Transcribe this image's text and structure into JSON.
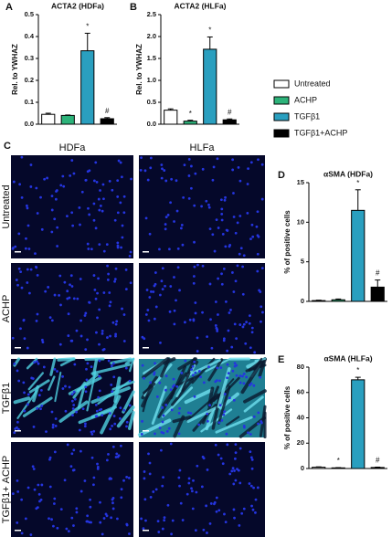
{
  "chart_data": [
    {
      "type": "bar",
      "panel": "A",
      "title": "ACTA2 (HDFa)",
      "ylabel": "Rel. to YWHAZ",
      "categories": [
        null,
        null,
        null,
        null
      ],
      "values": [
        0.045,
        0.04,
        0.335,
        0.025
      ],
      "errors": [
        0.005,
        0.002,
        0.08,
        0.005
      ],
      "colors": [
        "#ffffff",
        "#2db37a",
        "#2a9fbf",
        "#000000"
      ],
      "annotations": [
        null,
        null,
        "*",
        "#"
      ],
      "ylim": [
        0,
        0.5
      ],
      "yticks": [
        {
          "value": 0,
          "label": "0.0"
        },
        {
          "value": 0.1,
          "label": "0.1"
        },
        {
          "value": 0.2,
          "label": "0.2"
        },
        {
          "value": 0.3,
          "label": "0.3"
        },
        {
          "value": 0.4,
          "label": "0.4"
        },
        {
          "value": 0.5,
          "label": "0.5"
        }
      ]
    },
    {
      "type": "bar",
      "panel": "B",
      "title": "ACTA2 (HLFa)",
      "ylabel": "Rel. to YWHAZ",
      "categories": [
        null,
        null,
        null,
        null
      ],
      "values": [
        0.32,
        0.07,
        1.71,
        0.1
      ],
      "errors": [
        0.03,
        0.02,
        0.28,
        0.02
      ],
      "colors": [
        "#ffffff",
        "#2db37a",
        "#2a9fbf",
        "#000000"
      ],
      "annotations": [
        null,
        "*",
        "*",
        "#"
      ],
      "ylim": [
        0,
        2.5
      ],
      "yticks": [
        {
          "value": 0,
          "label": "0.0"
        },
        {
          "value": 0.5,
          "label": "0.5"
        },
        {
          "value": 1,
          "label": "1.0"
        },
        {
          "value": 1.5,
          "label": "1.5"
        },
        {
          "value": 2,
          "label": "2.0"
        },
        {
          "value": 2.5,
          "label": "2.5"
        }
      ]
    },
    {
      "type": "bar",
      "panel": "D",
      "title": "αSMA (HDFa)",
      "ylabel": "% of positive cells",
      "categories": [
        null,
        null,
        null,
        null
      ],
      "values": [
        0.1,
        0.2,
        11.5,
        1.8
      ],
      "errors": [
        0.05,
        0.1,
        2.6,
        0.9
      ],
      "colors": [
        "#ffffff",
        "#2db37a",
        "#2a9fbf",
        "#000000"
      ],
      "annotations": [
        null,
        null,
        "*",
        "#"
      ],
      "ylim": [
        0,
        15
      ],
      "yticks": [
        0,
        5,
        10,
        15
      ]
    },
    {
      "type": "bar",
      "panel": "E",
      "title": "αSMA (HLFa)",
      "ylabel": "% of positive cells",
      "categories": [
        null,
        null,
        null,
        null
      ],
      "values": [
        1,
        0.5,
        70,
        0.8
      ],
      "errors": [
        0.3,
        0.2,
        2,
        0.3
      ],
      "colors": [
        "#ffffff",
        "#2db37a",
        "#2a9fbf",
        "#000000"
      ],
      "annotations": [
        null,
        "*",
        "*",
        "#"
      ],
      "ylim": [
        0,
        80
      ],
      "yticks": [
        0,
        20,
        40,
        60,
        80
      ]
    }
  ],
  "legend": [
    {
      "name": "Untreated",
      "color": "#ffffff"
    },
    {
      "name": "ACHP",
      "color": "#2db37a"
    },
    {
      "name": "TGFβ1",
      "color": "#2a9fbf"
    },
    {
      "name": "TGFβ1+ACHP",
      "color": "#000000"
    }
  ],
  "panel_c": {
    "panel": "C",
    "columns": [
      "HDFa",
      "HLFa"
    ],
    "rows": [
      "Untreated",
      "ACHP",
      "TGFβ1",
      "TGFβ1+ ACHP"
    ]
  }
}
